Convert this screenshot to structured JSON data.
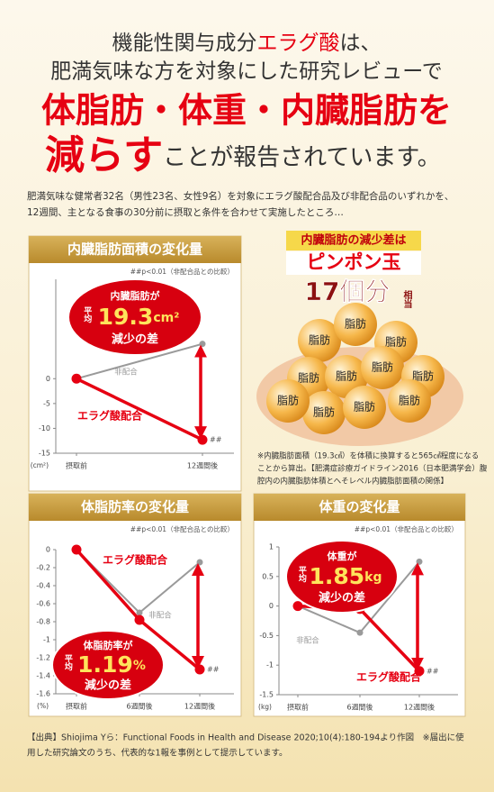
{
  "headline": {
    "line1": [
      "機能性関与成分",
      "エラグ酸",
      "は、"
    ],
    "line2": "肥満気味な方を対象にした研究レビューで",
    "line3": "体脂肪・体重・内臓脂肪を",
    "line4": [
      "減らす",
      "ことが報告されています。"
    ]
  },
  "intro": [
    "肥満気味な健常者32名（男性23名、女性9名）を対象にエラグ酸配合品及び非配合品のいずれかを、",
    "12週間、主となる食事の30分前に摂取と条件を合わせて実施したところ…"
  ],
  "chart_data": [
    {
      "type": "line",
      "title": "内臓脂肪面積の変化量",
      "note": "##p<0.01（非配合品との比較）",
      "y_unit": "(cm²)",
      "categories": [
        "摂取前",
        "12週間後"
      ],
      "series": [
        {
          "name": "非配合",
          "color": "#9a9a9a",
          "values": [
            0,
            7.0
          ]
        },
        {
          "name": "エラグ酸配合",
          "color": "#e60012",
          "values": [
            0,
            -12.3
          ]
        }
      ],
      "ylim": [
        -15,
        20
      ],
      "yticks": [
        0,
        -5,
        -10,
        -15
      ],
      "significance": "##",
      "callout": {
        "line1": "内臓脂肪が",
        "prefix": "平均",
        "value": 19.3,
        "unit": "cm²",
        "line2": "減少の差"
      }
    },
    {
      "type": "line",
      "title": "体脂肪率の変化量",
      "note": "##p<0.01（非配合品との比較）",
      "y_unit": "(%)",
      "categories": [
        "摂取前",
        "6週間後",
        "12週間後"
      ],
      "series": [
        {
          "name": "非配合",
          "color": "#9a9a9a",
          "values": [
            0,
            -0.7,
            -0.14
          ]
        },
        {
          "name": "エラグ酸配合",
          "color": "#e60012",
          "values": [
            0,
            -0.78,
            -1.33
          ]
        }
      ],
      "ylim": [
        -1.6,
        0
      ],
      "yticks": [
        0,
        -0.2,
        -0.4,
        -0.6,
        -0.8,
        -1,
        -1.2,
        -1.4,
        -1.6
      ],
      "significance": "##",
      "callout": {
        "line1": "体脂肪率が",
        "prefix": "平均",
        "value": 1.19,
        "unit": "%",
        "line2": "減少の差"
      }
    },
    {
      "type": "line",
      "title": "体重の変化量",
      "note": "##p<0.01（非配合品との比較）",
      "y_unit": "(kg)",
      "categories": [
        "摂取前",
        "6週間後",
        "12週間後"
      ],
      "series": [
        {
          "name": "非配合",
          "color": "#9a9a9a",
          "values": [
            0,
            -0.45,
            0.75
          ]
        },
        {
          "name": "エラグ酸配合",
          "color": "#e60012",
          "values": [
            0,
            -0.05,
            -1.1
          ]
        }
      ],
      "ylim": [
        -1.5,
        1
      ],
      "yticks": [
        1,
        0.5,
        0,
        -0.5,
        -1,
        -1.5
      ],
      "significance": "##",
      "callout": {
        "line1": "体重が",
        "prefix": "平均",
        "value": 1.85,
        "unit": "kg",
        "line2": "減少の差"
      }
    }
  ],
  "pingpong": {
    "line1": "内臓脂肪の減少差は",
    "line2": "ピンポン玉",
    "line3": "17個分",
    "line4": "相当",
    "ball_text": "脂肪",
    "note": [
      "※内臓脂肪面積（19.3㎠）を体積に換算すると565㎤程度になる",
      "ことから算出。【肥満症診療ガイドライン2016（日本肥満学会）腹",
      "腔内の内臓脂肪体積とへそレベル内臓脂肪面積の関係】"
    ]
  },
  "footer": [
    "【出典】Shiojima Yら：Functional Foods in Health and Disease 2020;10(4):180-194より作図　※届出に使",
    "用した研究論文のうち、代表的な1報を事例として提示しています。"
  ]
}
